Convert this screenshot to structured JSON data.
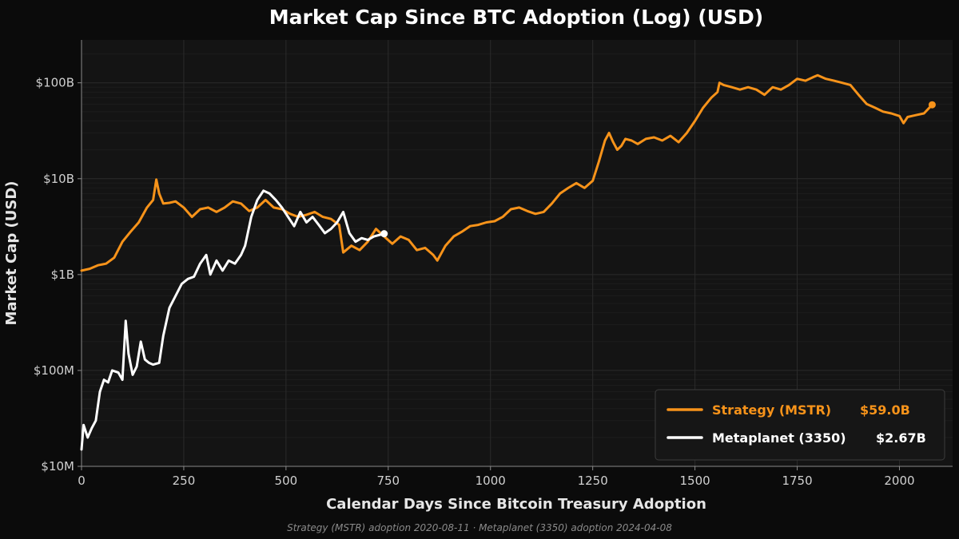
{
  "chart_data": {
    "type": "line",
    "title": "Market Cap Since BTC Adoption (Log) (USD)",
    "xlabel": "Calendar Days Since Bitcoin Treasury Adoption",
    "ylabel": "Market Cap (USD)",
    "y_scale": "log",
    "xlim": [
      0,
      2130
    ],
    "ylim": [
      10000000,
      280000000000
    ],
    "x_ticks": [
      0,
      250,
      500,
      750,
      1000,
      1250,
      1500,
      1750,
      2000
    ],
    "y_ticks": [
      {
        "value": 10000000,
        "label": "$10M"
      },
      {
        "value": 100000000,
        "label": "$100M"
      },
      {
        "value": 1000000000,
        "label": "$1B"
      },
      {
        "value": 10000000000,
        "label": "$10B"
      },
      {
        "value": 100000000000,
        "label": "$100B"
      }
    ],
    "grid": true,
    "legend_position": "bottom-right",
    "footnote": "Strategy (MSTR) adoption 2020-08-11   ·   Metaplanet (3350) adoption 2024-04-08",
    "series": [
      {
        "name": "Strategy (MSTR)",
        "last_value_label": "$59.0B",
        "color": "#f7931a",
        "points": [
          [
            0,
            1100000000
          ],
          [
            20,
            1150000000
          ],
          [
            40,
            1250000000
          ],
          [
            60,
            1300000000
          ],
          [
            80,
            1500000000
          ],
          [
            100,
            2200000000
          ],
          [
            120,
            2800000000
          ],
          [
            140,
            3500000000
          ],
          [
            160,
            5000000000
          ],
          [
            175,
            6000000000
          ],
          [
            183,
            9800000000
          ],
          [
            190,
            7000000000
          ],
          [
            200,
            5500000000
          ],
          [
            215,
            5600000000
          ],
          [
            230,
            5800000000
          ],
          [
            250,
            5000000000
          ],
          [
            270,
            4000000000
          ],
          [
            290,
            4800000000
          ],
          [
            310,
            5000000000
          ],
          [
            330,
            4500000000
          ],
          [
            350,
            5000000000
          ],
          [
            370,
            5800000000
          ],
          [
            390,
            5500000000
          ],
          [
            410,
            4600000000
          ],
          [
            430,
            5000000000
          ],
          [
            450,
            6000000000
          ],
          [
            470,
            5000000000
          ],
          [
            490,
            4800000000
          ],
          [
            510,
            4300000000
          ],
          [
            530,
            4000000000
          ],
          [
            550,
            4200000000
          ],
          [
            570,
            4500000000
          ],
          [
            590,
            4000000000
          ],
          [
            610,
            3800000000
          ],
          [
            630,
            3300000000
          ],
          [
            640,
            1700000000
          ],
          [
            660,
            2000000000
          ],
          [
            680,
            1800000000
          ],
          [
            700,
            2200000000
          ],
          [
            720,
            3000000000
          ],
          [
            740,
            2500000000
          ],
          [
            760,
            2100000000
          ],
          [
            780,
            2500000000
          ],
          [
            800,
            2300000000
          ],
          [
            820,
            1800000000
          ],
          [
            840,
            1900000000
          ],
          [
            860,
            1600000000
          ],
          [
            870,
            1400000000
          ],
          [
            890,
            2000000000
          ],
          [
            910,
            2500000000
          ],
          [
            930,
            2800000000
          ],
          [
            950,
            3200000000
          ],
          [
            970,
            3300000000
          ],
          [
            990,
            3500000000
          ],
          [
            1010,
            3600000000
          ],
          [
            1030,
            4000000000
          ],
          [
            1050,
            4800000000
          ],
          [
            1070,
            5000000000
          ],
          [
            1090,
            4600000000
          ],
          [
            1110,
            4300000000
          ],
          [
            1130,
            4500000000
          ],
          [
            1150,
            5500000000
          ],
          [
            1170,
            7000000000
          ],
          [
            1190,
            8000000000
          ],
          [
            1210,
            9000000000
          ],
          [
            1230,
            8000000000
          ],
          [
            1250,
            9500000000
          ],
          [
            1265,
            15000000000
          ],
          [
            1280,
            25000000000
          ],
          [
            1290,
            30000000000
          ],
          [
            1300,
            24000000000
          ],
          [
            1310,
            20000000000
          ],
          [
            1320,
            22000000000
          ],
          [
            1330,
            26000000000
          ],
          [
            1345,
            25000000000
          ],
          [
            1360,
            23000000000
          ],
          [
            1380,
            26000000000
          ],
          [
            1400,
            27000000000
          ],
          [
            1420,
            25000000000
          ],
          [
            1440,
            28000000000
          ],
          [
            1460,
            24000000000
          ],
          [
            1480,
            30000000000
          ],
          [
            1500,
            40000000000
          ],
          [
            1520,
            55000000000
          ],
          [
            1540,
            70000000000
          ],
          [
            1555,
            80000000000
          ],
          [
            1560,
            100000000000
          ],
          [
            1570,
            95000000000
          ],
          [
            1590,
            90000000000
          ],
          [
            1610,
            85000000000
          ],
          [
            1630,
            90000000000
          ],
          [
            1650,
            85000000000
          ],
          [
            1670,
            75000000000
          ],
          [
            1690,
            90000000000
          ],
          [
            1710,
            85000000000
          ],
          [
            1730,
            95000000000
          ],
          [
            1750,
            110000000000
          ],
          [
            1770,
            105000000000
          ],
          [
            1790,
            115000000000
          ],
          [
            1800,
            120000000000
          ],
          [
            1820,
            110000000000
          ],
          [
            1840,
            105000000000
          ],
          [
            1860,
            100000000000
          ],
          [
            1880,
            95000000000
          ],
          [
            1900,
            75000000000
          ],
          [
            1920,
            60000000000
          ],
          [
            1940,
            55000000000
          ],
          [
            1960,
            50000000000
          ],
          [
            1980,
            48000000000
          ],
          [
            2000,
            45000000000
          ],
          [
            2010,
            38000000000
          ],
          [
            2020,
            44000000000
          ],
          [
            2040,
            46000000000
          ],
          [
            2060,
            48000000000
          ],
          [
            2080,
            59000000000
          ]
        ]
      },
      {
        "name": "Metaplanet (3350)",
        "last_value_label": "$2.67B",
        "color": "#ffffff",
        "points": [
          [
            0,
            15000000
          ],
          [
            5,
            27000000
          ],
          [
            15,
            20000000
          ],
          [
            25,
            25000000
          ],
          [
            35,
            30000000
          ],
          [
            45,
            60000000
          ],
          [
            55,
            80000000
          ],
          [
            65,
            75000000
          ],
          [
            75,
            100000000
          ],
          [
            90,
            95000000
          ],
          [
            100,
            80000000
          ],
          [
            108,
            330000000
          ],
          [
            115,
            150000000
          ],
          [
            125,
            90000000
          ],
          [
            135,
            110000000
          ],
          [
            145,
            200000000
          ],
          [
            155,
            130000000
          ],
          [
            165,
            120000000
          ],
          [
            175,
            115000000
          ],
          [
            190,
            120000000
          ],
          [
            200,
            230000000
          ],
          [
            215,
            450000000
          ],
          [
            230,
            600000000
          ],
          [
            245,
            800000000
          ],
          [
            260,
            900000000
          ],
          [
            275,
            950000000
          ],
          [
            290,
            1300000000
          ],
          [
            305,
            1600000000
          ],
          [
            315,
            1000000000
          ],
          [
            330,
            1400000000
          ],
          [
            345,
            1100000000
          ],
          [
            360,
            1400000000
          ],
          [
            375,
            1300000000
          ],
          [
            390,
            1600000000
          ],
          [
            400,
            2000000000
          ],
          [
            415,
            4000000000
          ],
          [
            430,
            6000000000
          ],
          [
            445,
            7500000000
          ],
          [
            460,
            7000000000
          ],
          [
            475,
            6000000000
          ],
          [
            490,
            5000000000
          ],
          [
            505,
            4000000000
          ],
          [
            520,
            3200000000
          ],
          [
            535,
            4500000000
          ],
          [
            550,
            3500000000
          ],
          [
            565,
            4000000000
          ],
          [
            580,
            3300000000
          ],
          [
            595,
            2700000000
          ],
          [
            610,
            3000000000
          ],
          [
            625,
            3500000000
          ],
          [
            640,
            4500000000
          ],
          [
            655,
            2700000000
          ],
          [
            670,
            2200000000
          ],
          [
            685,
            2400000000
          ],
          [
            700,
            2300000000
          ],
          [
            715,
            2500000000
          ],
          [
            730,
            2600000000
          ],
          [
            740,
            2670000000
          ]
        ]
      }
    ]
  }
}
